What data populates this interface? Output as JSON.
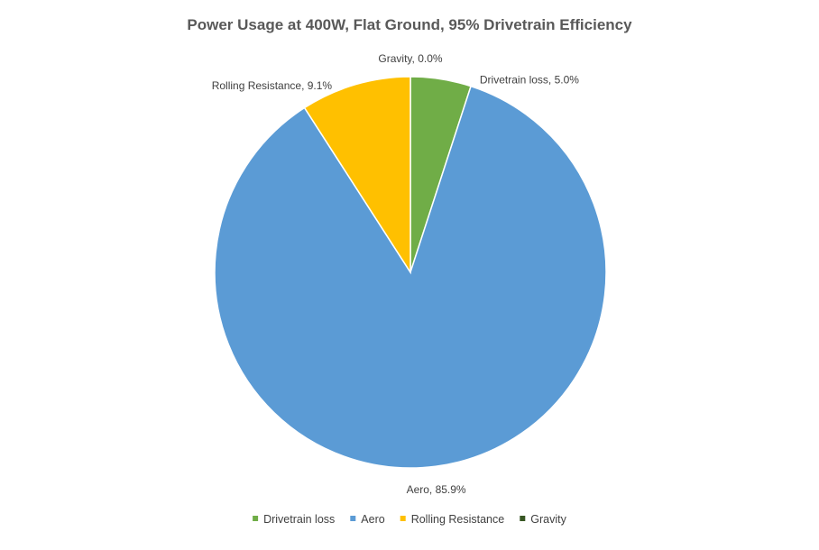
{
  "chart_data": {
    "type": "pie",
    "title": "Power Usage at 400W, Flat Ground, 95% Drivetrain Efficiency",
    "slices": [
      {
        "name": "Drivetrain loss",
        "value": 5.0,
        "label": "Drivetrain loss, 5.0%",
        "color": "#70ad47"
      },
      {
        "name": "Aero",
        "value": 85.9,
        "label": "Aero, 85.9%",
        "color": "#5b9bd5"
      },
      {
        "name": "Rolling Resistance",
        "value": 9.1,
        "label": "Rolling Resistance, 9.1%",
        "color": "#ffc000"
      },
      {
        "name": "Gravity",
        "value": 0.0,
        "label": "Gravity, 0.0%",
        "color": "#375623"
      }
    ],
    "start_angle_deg": 0,
    "direction": "clockwise",
    "legend_position": "bottom",
    "data_labels": "outside"
  }
}
